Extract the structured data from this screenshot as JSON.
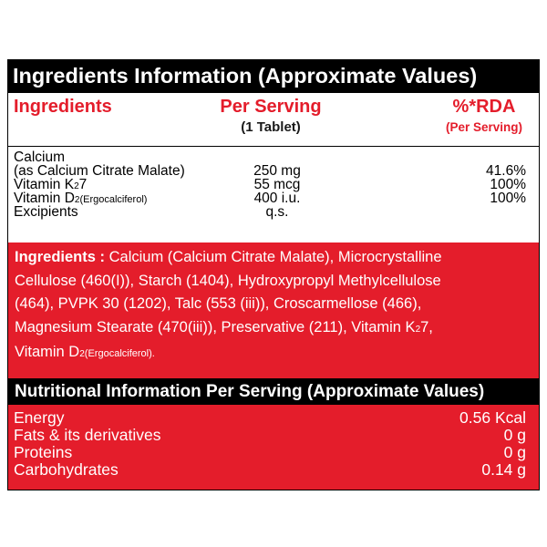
{
  "ingredients_table": {
    "title": "Ingredients Information (Approximate Values)",
    "headers": {
      "ingredient": "Ingredients",
      "per_serving": "Per Serving",
      "per_serving_sub": "(1 Tablet)",
      "rda": "%*RDA",
      "rda_sub": "(Per Serving)"
    },
    "rows": [
      {
        "name_line1": "Calcium",
        "name_line2": "(as Calcium Citrate Malate)",
        "value": "250 mg",
        "rda": "41.6%"
      },
      {
        "name_main": "Vitamin K",
        "name_sub": "2",
        "name_tail": "7",
        "value": "55 mcg",
        "rda": "100%"
      },
      {
        "name_main": "Vitamin D",
        "name_sub": "2",
        "name_tail": "(Ergocalciferol)",
        "value": "400 i.u.",
        "rda": "100%"
      },
      {
        "name": "Excipients",
        "value": "q.s.",
        "rda": ""
      }
    ]
  },
  "ingredients_list": {
    "label": "Ingredients :",
    "line1": "Calcium (Calcium Citrate Malate), Microcrystalline",
    "line2": "Cellulose (460(I)), Starch (1404), Hydroxypropyl Methylcellulose",
    "line3": "(464), PVPK 30 (1202), Talc (553 (iii)), Croscarmellose (466),",
    "line4": "Magnesium Stearate (470(iii)), Preservative (211), Vitamin K",
    "line4_sub": "2",
    "line4_tail": "7,",
    "line5_main": "Vitamin D",
    "line5_sub": "2",
    "line5_tail": "(Ergocalciferol)."
  },
  "nutrition": {
    "title": "Nutritional Information Per Serving (Approximate Values)",
    "rows": [
      {
        "label": "Energy",
        "value": "0.56 Kcal"
      },
      {
        "label": "Fats & its derivatives",
        "value": "0 g"
      },
      {
        "label": "Proteins",
        "value": "0 g"
      },
      {
        "label": "Carbohydrates",
        "value": "0.14 g"
      }
    ]
  },
  "colors": {
    "accent_red": "#e41d2b",
    "header_black": "#000000"
  }
}
